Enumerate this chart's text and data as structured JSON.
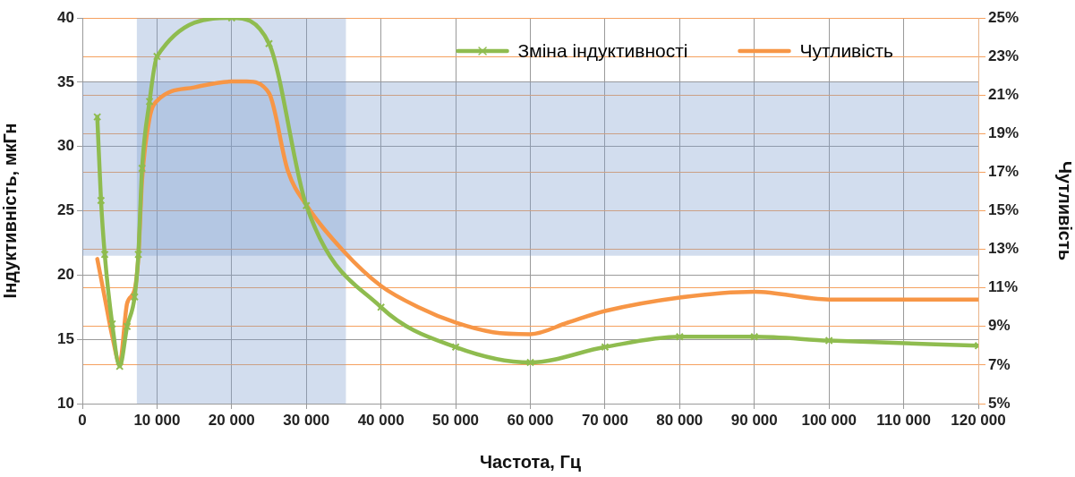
{
  "chart_data": {
    "type": "line",
    "xlabel": "Частота, Гц",
    "ylabel": "Індуктивність, мкГн",
    "y2label": "Чутливість",
    "xlim": [
      0,
      120000
    ],
    "xticks": [
      0,
      {
        "value": 10000,
        "label": "10 000"
      },
      {
        "value": 20000,
        "label": "20 000"
      },
      {
        "value": 30000,
        "label": "30 000"
      },
      {
        "value": 40000,
        "label": "40 000"
      },
      {
        "value": 50000,
        "label": "50 000"
      },
      {
        "value": 60000,
        "label": "60 000"
      },
      {
        "value": 70000,
        "label": "70 000"
      },
      {
        "value": 80000,
        "label": "80 000"
      },
      {
        "value": 90000,
        "label": "90 000"
      },
      {
        "value": 100000,
        "label": "100 000"
      },
      {
        "value": 110000,
        "label": "110 000"
      },
      {
        "value": 120000,
        "label": "120 000"
      }
    ],
    "ylim": [
      10,
      40
    ],
    "yticks": [
      10,
      15,
      20,
      25,
      30,
      35,
      40
    ],
    "y2lim": [
      5,
      25
    ],
    "y2ticks": [
      {
        "value": 5,
        "label": "5%"
      },
      {
        "value": 7,
        "label": "7%"
      },
      {
        "value": 9,
        "label": "9%"
      },
      {
        "value": 11,
        "label": "11%"
      },
      {
        "value": 13,
        "label": "13%"
      },
      {
        "value": 15,
        "label": "15%"
      },
      {
        "value": 17,
        "label": "17%"
      },
      {
        "value": 19,
        "label": "19%"
      },
      {
        "value": 21,
        "label": "21%"
      },
      {
        "value": 23,
        "label": "23%"
      },
      {
        "value": 25,
        "label": "25%"
      }
    ],
    "series": [
      {
        "name": "Зміна індуктивності",
        "color": "#8fbc4f",
        "marker": "cross",
        "x": [
          2000,
          2500,
          3000,
          4000,
          5000,
          6000,
          7000,
          7500,
          8000,
          9000,
          10000,
          20000,
          25000,
          30000,
          40000,
          50000,
          60000,
          70000,
          80000,
          90000,
          100000,
          120000
        ],
        "values": [
          32.3,
          25.8,
          21.6,
          16.2,
          12.9,
          16.0,
          18.3,
          21.6,
          28.3,
          33.5,
          37.0,
          40.0,
          38.0,
          25.4,
          17.5,
          14.4,
          13.2,
          14.4,
          15.2,
          15.2,
          14.9,
          14.5
        ]
      },
      {
        "name": "Чутливість",
        "color": "#f79646",
        "axis": "y2",
        "marker": "none",
        "x": [
          2000,
          3000,
          4000,
          5000,
          6000,
          7000,
          7500,
          8000,
          9000,
          10000,
          15000,
          20000,
          22000,
          25000,
          27500,
          30000,
          35000,
          40000,
          45000,
          50000,
          55000,
          60000,
          65000,
          70000,
          80000,
          90000,
          100000,
          110000,
          120000
        ],
        "values": [
          12.5,
          10.5,
          8.5,
          7.1,
          10.2,
          10.9,
          12.6,
          16.6,
          19.8,
          20.7,
          21.4,
          21.7,
          21.7,
          21.1,
          17.1,
          15.3,
          12.9,
          11.1,
          10.0,
          9.2,
          8.7,
          8.6,
          9.2,
          9.8,
          10.5,
          10.8,
          10.4,
          10.4,
          10.4
        ]
      }
    ],
    "bands": [
      {
        "axis": "x",
        "from": 7300,
        "to": 35300,
        "color": "#7f9fcf"
      },
      {
        "axis": "y",
        "from": 21.5,
        "to": 35,
        "color": "#7f9fcf"
      }
    ],
    "grid": true,
    "legend": "top right",
    "line_style": "solid"
  }
}
